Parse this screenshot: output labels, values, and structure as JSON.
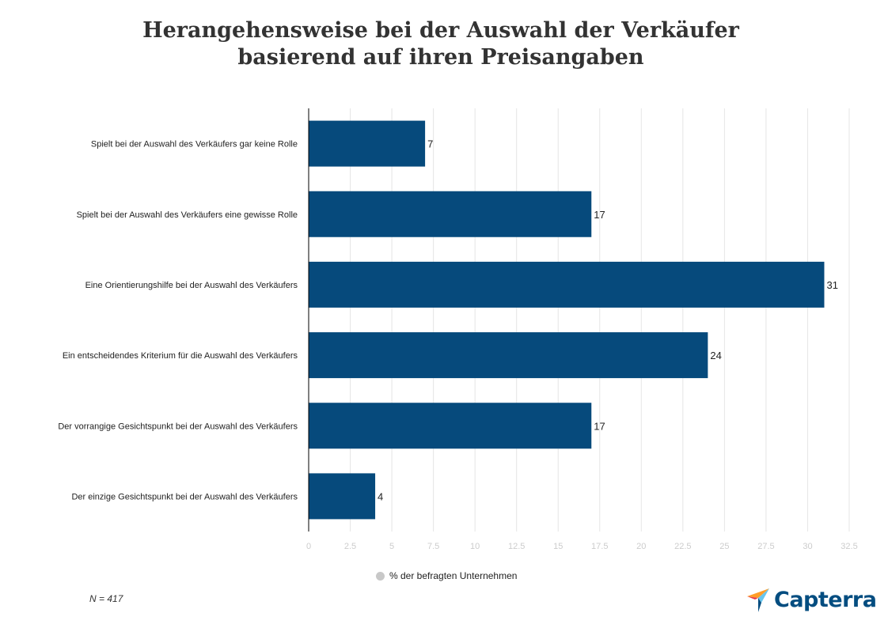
{
  "colors": {
    "bar": "#064a7c",
    "grid": "#e6e6e6",
    "axis": "#000000",
    "tick_label": "#cccccc",
    "text": "#222222",
    "logo_blue": "#044d80",
    "logo_orange": "#ff9d28",
    "logo_cyan": "#68c5ed",
    "logo_red": "#e6394a"
  },
  "logo": {
    "text": "Capterra",
    "icon": "capterra-arrow-icon"
  },
  "footnote": "N = 417",
  "chart_data": {
    "type": "bar",
    "orientation": "horizontal",
    "title": [
      "Herangehensweise bei der Auswahl der Verkäufer",
      "basierend auf ihren Preisangaben"
    ],
    "categories": [
      "Spielt bei der Auswahl des Verkäufers gar keine Rolle",
      "Spielt bei der Auswahl des Verkäufers eine gewisse Rolle",
      "Eine Orientierungshilfe bei der Auswahl des Verkäufers",
      "Ein entscheidendes Kriterium für die Auswahl des Verkäufers",
      "Der vorrangige Gesichtspunkt bei der Auswahl des Verkäufers",
      "Der einzige Gesichtspunkt bei der Auswahl des Verkäufers"
    ],
    "series": [
      {
        "name": "% der befragten Unternehmen",
        "values": [
          7,
          17,
          31,
          24,
          17,
          4
        ]
      }
    ],
    "xlim": [
      0,
      32.5
    ],
    "xticks": [
      "0",
      "2.5",
      "5",
      "7.5",
      "10",
      "12.5",
      "15",
      "17.5",
      "20",
      "22.5",
      "25",
      "27.5",
      "30",
      "32.5"
    ],
    "grid": true,
    "legend": "bottom-center",
    "data_labels": true
  }
}
